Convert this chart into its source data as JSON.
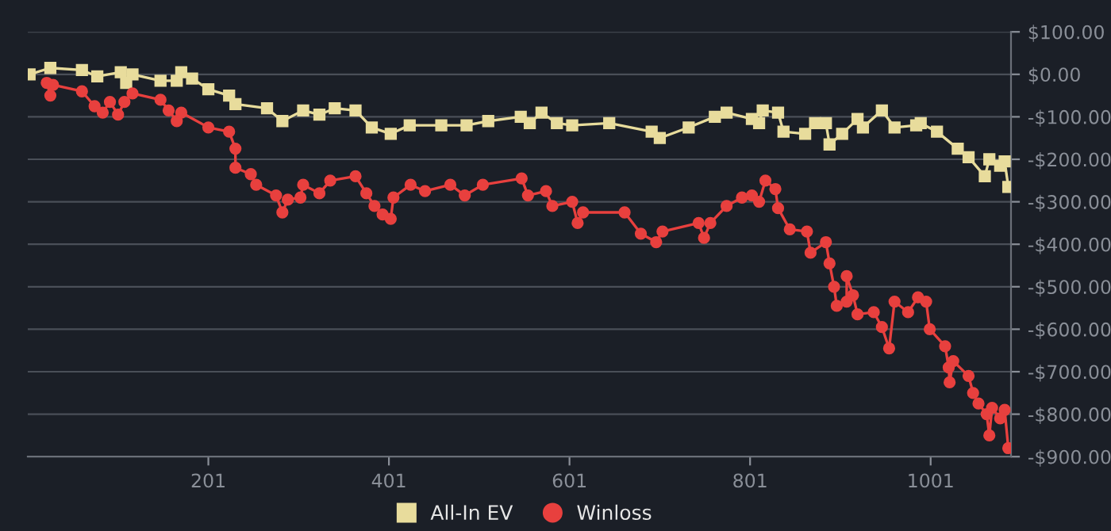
{
  "chart_data": {
    "type": "line",
    "xlim": [
      1,
      1090
    ],
    "xticks": [
      201,
      401,
      601,
      801,
      1001
    ],
    "ylim": [
      -900,
      100
    ],
    "yticks": [
      {
        "value": 100,
        "label": "$100.00"
      },
      {
        "value": 0,
        "label": "$0.00"
      },
      {
        "value": -100,
        "label": "-$100.00"
      },
      {
        "value": -200,
        "label": "-$200.00"
      },
      {
        "value": -300,
        "label": "-$300.00"
      },
      {
        "value": -400,
        "label": "-$400.00"
      },
      {
        "value": -500,
        "label": "-$500.00"
      },
      {
        "value": -600,
        "label": "-$600.00"
      },
      {
        "value": -700,
        "label": "-$700.00"
      },
      {
        "value": -800,
        "label": "-$800.00"
      },
      {
        "value": -900,
        "label": "-$900.00"
      }
    ],
    "grid": "y",
    "legend": "bottom",
    "series": [
      {
        "name": "All-In EV",
        "color": "#e8dc9c",
        "marker": "square",
        "x": [
          3,
          26,
          61,
          78,
          104,
          110,
          117,
          148,
          166,
          171,
          183,
          201,
          224,
          231,
          266,
          283,
          306,
          324,
          341,
          364,
          382,
          403,
          424,
          459,
          487,
          511,
          547,
          557,
          570,
          587,
          604,
          645,
          692,
          701,
          733,
          762,
          775,
          803,
          811,
          815,
          832,
          838,
          862,
          873,
          885,
          889,
          903,
          920,
          926,
          947,
          961,
          985,
          990,
          1008,
          1031,
          1043,
          1061,
          1066,
          1078,
          1083,
          1087
        ],
        "values": [
          0,
          15,
          10,
          -5,
          5,
          -20,
          0,
          -15,
          -15,
          5,
          -10,
          -35,
          -50,
          -70,
          -80,
          -110,
          -85,
          -95,
          -80,
          -85,
          -125,
          -140,
          -120,
          -120,
          -120,
          -110,
          -100,
          -115,
          -90,
          -115,
          -120,
          -115,
          -135,
          -150,
          -125,
          -100,
          -90,
          -105,
          -115,
          -85,
          -90,
          -135,
          -140,
          -115,
          -115,
          -165,
          -140,
          -105,
          -125,
          -85,
          -125,
          -120,
          -115,
          -135,
          -175,
          -195,
          -240,
          -200,
          -215,
          -205,
          -265
        ]
      },
      {
        "name": "Winloss",
        "color": "#e8403e",
        "marker": "circle",
        "x": [
          22,
          26,
          29,
          61,
          75,
          84,
          92,
          101,
          108,
          117,
          148,
          157,
          166,
          171,
          201,
          224,
          231,
          231,
          248,
          254,
          276,
          283,
          289,
          303,
          306,
          324,
          336,
          364,
          376,
          385,
          394,
          403,
          406,
          425,
          441,
          469,
          485,
          505,
          548,
          555,
          575,
          582,
          604,
          610,
          616,
          662,
          680,
          697,
          704,
          744,
          750,
          757,
          775,
          792,
          803,
          811,
          818,
          829,
          832,
          845,
          864,
          868,
          885,
          889,
          894,
          897,
          908,
          908,
          915,
          920,
          938,
          947,
          955,
          961,
          976,
          987,
          996,
          1000,
          1017,
          1021,
          1022,
          1026,
          1043,
          1048,
          1054,
          1063,
          1066,
          1069,
          1078,
          1083,
          1087
        ],
        "values": [
          -20,
          -50,
          -25,
          -40,
          -75,
          -90,
          -65,
          -95,
          -65,
          -45,
          -60,
          -85,
          -110,
          -90,
          -125,
          -135,
          -175,
          -220,
          -235,
          -260,
          -285,
          -325,
          -295,
          -290,
          -260,
          -280,
          -250,
          -240,
          -280,
          -310,
          -330,
          -340,
          -290,
          -260,
          -275,
          -260,
          -285,
          -260,
          -245,
          -285,
          -275,
          -310,
          -300,
          -350,
          -325,
          -325,
          -375,
          -395,
          -370,
          -350,
          -385,
          -350,
          -310,
          -290,
          -285,
          -300,
          -250,
          -270,
          -315,
          -365,
          -370,
          -420,
          -395,
          -445,
          -500,
          -545,
          -535,
          -475,
          -520,
          -565,
          -560,
          -595,
          -645,
          -535,
          -560,
          -525,
          -535,
          -600,
          -640,
          -690,
          -725,
          -675,
          -710,
          -750,
          -775,
          -800,
          -850,
          -785,
          -810,
          -790,
          -880
        ]
      }
    ]
  }
}
